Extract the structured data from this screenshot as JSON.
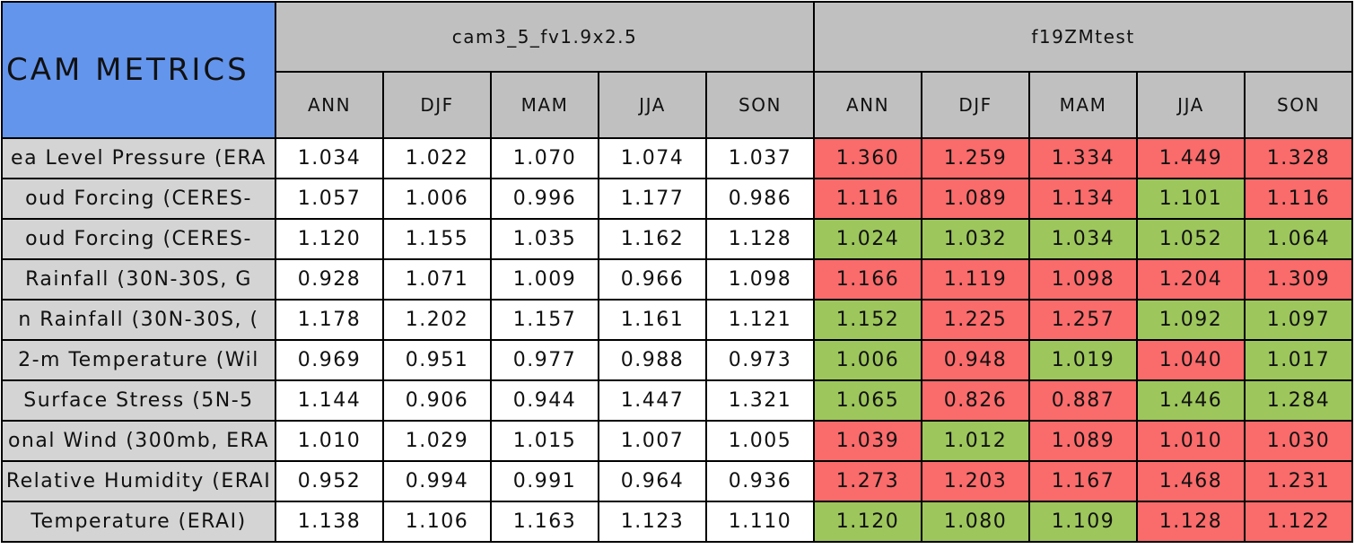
{
  "title": "CAM METRICS",
  "groups": [
    {
      "name": "cam3_5_fv1.9x2.5",
      "seasons": [
        "ANN",
        "DJF",
        "MAM",
        "JJA",
        "SON"
      ]
    },
    {
      "name": "f19ZMtest",
      "seasons": [
        "ANN",
        "DJF",
        "MAM",
        "JJA",
        "SON"
      ]
    }
  ],
  "label_bg": "#d4d4d4",
  "rows": [
    {
      "label": "ea Level Pressure (ERA",
      "cells": [
        [
          "1.034",
          "1.022",
          "1.070",
          "1.074",
          "1.037"
        ],
        [
          "1.360",
          "1.259",
          "1.334",
          "1.449",
          "1.328"
        ]
      ],
      "colors": [
        null,
        [
          "#fa6b6b",
          "#fa6b6b",
          "#fa6b6b",
          "#fa6b6b",
          "#fa6b6b"
        ]
      ]
    },
    {
      "label": "oud Forcing (CERES-",
      "cells": [
        [
          "1.057",
          "1.006",
          "0.996",
          "1.177",
          "0.986"
        ],
        [
          "1.116",
          "1.089",
          "1.134",
          "1.101",
          "1.116"
        ]
      ],
      "colors": [
        null,
        [
          "#fa6b6b",
          "#fa6b6b",
          "#fa6b6b",
          "#9dc65c",
          "#fa6b6b"
        ]
      ]
    },
    {
      "label": "oud Forcing (CERES-",
      "cells": [
        [
          "1.120",
          "1.155",
          "1.035",
          "1.162",
          "1.128"
        ],
        [
          "1.024",
          "1.032",
          "1.034",
          "1.052",
          "1.064"
        ]
      ],
      "colors": [
        null,
        [
          "#9dc65c",
          "#9dc65c",
          "#9dc65c",
          "#9dc65c",
          "#9dc65c"
        ]
      ]
    },
    {
      "label": "Rainfall (30N-30S, G",
      "cells": [
        [
          "0.928",
          "1.071",
          "1.009",
          "0.966",
          "1.098"
        ],
        [
          "1.166",
          "1.119",
          "1.098",
          "1.204",
          "1.309"
        ]
      ],
      "colors": [
        null,
        [
          "#fa6b6b",
          "#fa6b6b",
          "#fa6b6b",
          "#fa6b6b",
          "#fa6b6b"
        ]
      ]
    },
    {
      "label": "n Rainfall (30N-30S, (",
      "cells": [
        [
          "1.178",
          "1.202",
          "1.157",
          "1.161",
          "1.121"
        ],
        [
          "1.152",
          "1.225",
          "1.257",
          "1.092",
          "1.097"
        ]
      ],
      "colors": [
        null,
        [
          "#9dc65c",
          "#fa6b6b",
          "#fa6b6b",
          "#9dc65c",
          "#9dc65c"
        ]
      ]
    },
    {
      "label": "2-m Temperature (Wil",
      "cells": [
        [
          "0.969",
          "0.951",
          "0.977",
          "0.988",
          "0.973"
        ],
        [
          "1.006",
          "0.948",
          "1.019",
          "1.040",
          "1.017"
        ]
      ],
      "colors": [
        null,
        [
          "#9dc65c",
          "#fa6b6b",
          "#9dc65c",
          "#fa6b6b",
          "#9dc65c"
        ]
      ]
    },
    {
      "label": "Surface Stress (5N-5",
      "cells": [
        [
          "1.144",
          "0.906",
          "0.944",
          "1.447",
          "1.321"
        ],
        [
          "1.065",
          "0.826",
          "0.887",
          "1.446",
          "1.284"
        ]
      ],
      "colors": [
        null,
        [
          "#9dc65c",
          "#fa6b6b",
          "#fa6b6b",
          "#9dc65c",
          "#9dc65c"
        ]
      ]
    },
    {
      "label": "onal Wind (300mb, ERA",
      "cells": [
        [
          "1.010",
          "1.029",
          "1.015",
          "1.007",
          "1.005"
        ],
        [
          "1.039",
          "1.012",
          "1.089",
          "1.010",
          "1.030"
        ]
      ],
      "colors": [
        null,
        [
          "#fa6b6b",
          "#9dc65c",
          "#fa6b6b",
          "#fa6b6b",
          "#fa6b6b"
        ]
      ]
    },
    {
      "label": "Relative Humidity (ERAI",
      "cells": [
        [
          "0.952",
          "0.994",
          "0.991",
          "0.964",
          "0.936"
        ],
        [
          "1.273",
          "1.203",
          "1.167",
          "1.468",
          "1.231"
        ]
      ],
      "colors": [
        null,
        [
          "#fa6b6b",
          "#fa6b6b",
          "#fa6b6b",
          "#fa6b6b",
          "#fa6b6b"
        ]
      ]
    },
    {
      "label": "Temperature (ERAI)",
      "cells": [
        [
          "1.138",
          "1.106",
          "1.163",
          "1.123",
          "1.110"
        ],
        [
          "1.120",
          "1.080",
          "1.109",
          "1.128",
          "1.122"
        ]
      ],
      "colors": [
        null,
        [
          "#9dc65c",
          "#9dc65c",
          "#9dc65c",
          "#fa6b6b",
          "#fa6b6b"
        ]
      ]
    }
  ]
}
